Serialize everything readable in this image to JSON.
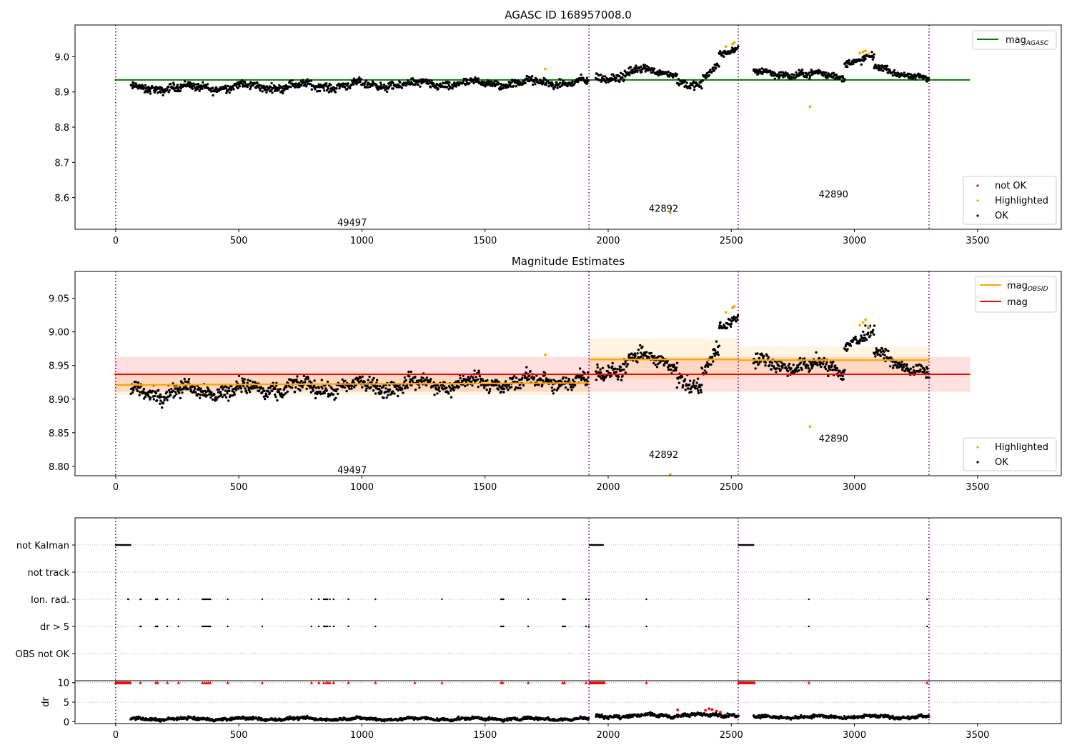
{
  "chart_data": [
    {
      "type": "scatter",
      "title": "AGASC ID 168957008.0",
      "xlim": [
        -165,
        3840
      ],
      "ylim": [
        8.51,
        9.09
      ],
      "x_ticks": [
        "0",
        "500",
        "1000",
        "1500",
        "2000",
        "2500",
        "3000",
        "3500"
      ],
      "y_ticks": [
        "8.6",
        "8.7",
        "8.8",
        "8.9",
        "9.0"
      ],
      "obs_boundaries": [
        0,
        1922,
        2528,
        3303
      ],
      "obs_labels": [
        {
          "text": "49497",
          "x": 960,
          "y": 8.53
        },
        {
          "text": "42892",
          "x": 2225,
          "y": 8.57
        },
        {
          "text": "42890",
          "x": 2915,
          "y": 8.61
        }
      ],
      "legend_lines": {
        "main": "mag",
        "subscript": "AGASC",
        "color": "#008000",
        "value": 8.934
      },
      "legend_markers": [
        {
          "label": "not OK",
          "color": "#ff0000"
        },
        {
          "label": "Highlighted",
          "color": "#ffa500"
        },
        {
          "label": "OK",
          "color": "#000000"
        }
      ],
      "legend_line_loc": "upper right",
      "legend_marker_loc": "lower right",
      "grid": false,
      "series": [
        {
          "name": "OK",
          "color": "#000000",
          "segments": [
            {
              "x": [
                62,
                1920
              ],
              "y": [
                8.91,
                8.928
              ],
              "noise": 0.011,
              "n": 930
            },
            {
              "x": [
                1950,
                2150
              ],
              "y": [
                8.935,
                8.965
              ],
              "noise": 0.012,
              "n": 100
            },
            {
              "x": [
                2150,
                2280
              ],
              "y": [
                8.958,
                8.955
              ],
              "noise": 0.009,
              "n": 65
            },
            {
              "x": [
                2280,
                2380
              ],
              "y": [
                8.935,
                8.905
              ],
              "noise": 0.012,
              "n": 50
            },
            {
              "x": [
                2380,
                2450
              ],
              "y": [
                8.93,
                8.975
              ],
              "noise": 0.012,
              "n": 35
            },
            {
              "x": [
                2450,
                2528
              ],
              "y": [
                9.01,
                9.025
              ],
              "noise": 0.008,
              "n": 40
            },
            {
              "x": [
                2590,
                2960
              ],
              "y": [
                8.955,
                8.945
              ],
              "noise": 0.01,
              "n": 185
            },
            {
              "x": [
                2960,
                3080
              ],
              "y": [
                8.985,
                8.995
              ],
              "noise": 0.01,
              "n": 60
            },
            {
              "x": [
                3080,
                3303
              ],
              "y": [
                8.97,
                8.935
              ],
              "noise": 0.008,
              "n": 110
            }
          ]
        },
        {
          "name": "Highlighted",
          "color": "#ffa500",
          "points": [
            [
              1745,
              8.965
            ],
            [
              2252,
              8.557
            ],
            [
              2478,
              9.029
            ],
            [
              2505,
              9.036
            ],
            [
              2512,
              9.04
            ],
            [
              2820,
              8.858
            ],
            [
              3022,
              9.01
            ],
            [
              3035,
              9.014
            ],
            [
              3045,
              9.016
            ],
            [
              3058,
              9.008
            ]
          ]
        }
      ]
    },
    {
      "type": "scatter",
      "title": "Magnitude Estimates",
      "xlim": [
        -165,
        3840
      ],
      "ylim": [
        8.786,
        9.09
      ],
      "x_ticks": [
        "0",
        "500",
        "1000",
        "1500",
        "2000",
        "2500",
        "3000",
        "3500"
      ],
      "y_ticks": [
        "8.80",
        "8.85",
        "8.90",
        "8.95",
        "9.00",
        "9.05"
      ],
      "obs_boundaries": [
        0,
        1922,
        2528,
        3303
      ],
      "obs_labels": [
        {
          "text": "49497",
          "x": 960,
          "y": 8.795
        },
        {
          "text": "42892",
          "x": 2225,
          "y": 8.818
        },
        {
          "text": "42890",
          "x": 2915,
          "y": 8.842
        }
      ],
      "legend_lines": [
        {
          "main": "mag",
          "subscript": "OBSID",
          "color": "#ffa500"
        },
        {
          "main": "mag",
          "subscript": "",
          "color": "#ff0000"
        }
      ],
      "legend_markers": [
        {
          "label": "Highlighted",
          "color": "#ffa500"
        },
        {
          "label": "OK",
          "color": "#000000"
        }
      ],
      "legend_line_loc": "upper right",
      "legend_marker_loc": "lower right",
      "mag_line": {
        "value": 8.937,
        "band": [
          8.911,
          8.963
        ],
        "x": [
          -5,
          3470
        ]
      },
      "obsid_mags": [
        {
          "x": [
            0,
            1922
          ],
          "y": [
            8.921,
            8.924
          ],
          "band": [
            8.906,
            8.936
          ]
        },
        {
          "x": [
            1922,
            2528
          ],
          "y": [
            8.959,
            8.959
          ],
          "band": [
            8.928,
            8.99
          ]
        },
        {
          "x": [
            2528,
            3303
          ],
          "y": [
            8.958,
            8.958
          ],
          "band": [
            8.937,
            8.978
          ]
        }
      ],
      "series": [
        {
          "name": "OK",
          "color": "#000000",
          "segments": [
            {
              "x": [
                62,
                1920
              ],
              "y": [
                8.91,
                8.928
              ],
              "noise": 0.011,
              "n": 930
            },
            {
              "x": [
                1950,
                2150
              ],
              "y": [
                8.935,
                8.965
              ],
              "noise": 0.012,
              "n": 100
            },
            {
              "x": [
                2150,
                2280
              ],
              "y": [
                8.958,
                8.955
              ],
              "noise": 0.009,
              "n": 65
            },
            {
              "x": [
                2280,
                2380
              ],
              "y": [
                8.935,
                8.905
              ],
              "noise": 0.012,
              "n": 50
            },
            {
              "x": [
                2380,
                2450
              ],
              "y": [
                8.93,
                8.975
              ],
              "noise": 0.012,
              "n": 35
            },
            {
              "x": [
                2450,
                2528
              ],
              "y": [
                9.01,
                9.025
              ],
              "noise": 0.008,
              "n": 40
            },
            {
              "x": [
                2590,
                2960
              ],
              "y": [
                8.955,
                8.945
              ],
              "noise": 0.01,
              "n": 185
            },
            {
              "x": [
                2960,
                3080
              ],
              "y": [
                8.985,
                8.995
              ],
              "noise": 0.01,
              "n": 60
            },
            {
              "x": [
                3080,
                3303
              ],
              "y": [
                8.97,
                8.935
              ],
              "noise": 0.008,
              "n": 110
            }
          ]
        },
        {
          "name": "Highlighted",
          "color": "#ffa500",
          "points": [
            [
              1745,
              8.966
            ],
            [
              2252,
              8.788
            ],
            [
              2478,
              9.029
            ],
            [
              2505,
              9.036
            ],
            [
              2512,
              9.038
            ],
            [
              2820,
              8.859
            ],
            [
              3022,
              9.01
            ],
            [
              3035,
              9.014
            ],
            [
              3045,
              9.018
            ],
            [
              3058,
              9.008
            ]
          ]
        }
      ]
    },
    {
      "type": "scatter",
      "title": "",
      "xlim": [
        -165,
        3840
      ],
      "flag_labels": [
        "not Kalman",
        "not track",
        "Ion. rad.",
        "dr > 5",
        "OBS not OK"
      ],
      "obs_boundaries": [
        0,
        1922,
        2528,
        3303
      ],
      "flags": {
        "not Kalman": {
          "ranges": [
            [
              0,
              60
            ],
            [
              1925,
              1980
            ],
            [
              2530,
              2590
            ]
          ],
          "points": []
        },
        "not track": {
          "ranges": [],
          "points": []
        },
        "Ion. rad.": {
          "ranges": [],
          "points": [
            50,
            52,
            100,
            103,
            163,
            166,
            170,
            210,
            255,
            352,
            356,
            360,
            365,
            370,
            375,
            380,
            385,
            455,
            595,
            795,
            825,
            845,
            850,
            855,
            860,
            870,
            885,
            945,
            1055,
            1325,
            1565,
            1570,
            1575,
            1675,
            1815,
            1820,
            1825,
            1910,
            1922,
            2155,
            2815,
            3295
          ]
        },
        "dr > 5": {
          "ranges": [],
          "points": [
            100,
            103,
            163,
            166,
            170,
            210,
            255,
            352,
            356,
            360,
            365,
            370,
            375,
            380,
            385,
            455,
            595,
            795,
            825,
            845,
            850,
            855,
            860,
            870,
            885,
            945,
            1055,
            1565,
            1570,
            1575,
            1675,
            1815,
            1820,
            1825,
            1910,
            1922,
            2155,
            2815,
            3295
          ]
        },
        "OBS not OK": {
          "ranges": [],
          "points": []
        }
      },
      "flag_color": "#000000"
    },
    {
      "type": "scatter",
      "title": "",
      "xlim": [
        -165,
        3840
      ],
      "ylim": [
        -0.5,
        10.5
      ],
      "ylabel": "dr",
      "x_ticks": [
        "0",
        "500",
        "1000",
        "1500",
        "2000",
        "2500",
        "3000",
        "3500"
      ],
      "y_ticks": [
        "0",
        "5",
        "10"
      ],
      "obs_boundaries": [
        0,
        1922,
        2528,
        3303
      ],
      "clip_markers": {
        "color": "#ff0000",
        "value": 10,
        "ranges": [
          [
            0,
            62
          ],
          [
            1925,
            1985
          ],
          [
            2530,
            2595
          ]
        ],
        "points": [
          100,
          163,
          170,
          210,
          255,
          352,
          360,
          368,
          376,
          384,
          455,
          595,
          795,
          825,
          845,
          855,
          862,
          870,
          885,
          945,
          1055,
          1215,
          1325,
          1565,
          1572,
          1675,
          1815,
          1822,
          1910,
          2155,
          2815,
          3295
        ]
      },
      "series": [
        {
          "name": "dr",
          "color": "#000000",
          "segments": [
            {
              "x": [
                62,
                1920
              ],
              "y": [
                0.7,
                0.7
              ],
              "noise": 0.35,
              "n": 900
            },
            {
              "x": [
                1950,
                2528
              ],
              "y": [
                1.4,
                1.8
              ],
              "noise": 0.45,
              "n": 260
            },
            {
              "x": [
                2590,
                3303
              ],
              "y": [
                1.2,
                1.2
              ],
              "noise": 0.4,
              "n": 320
            }
          ]
        },
        {
          "name": "dr not OK",
          "color": "#ff0000",
          "points": [
            [
              2282,
              3.0
            ],
            [
              2395,
              2.9
            ],
            [
              2410,
              3.3
            ],
            [
              2422,
              3.1
            ],
            [
              2440,
              2.7
            ],
            [
              2455,
              2.4
            ]
          ]
        }
      ]
    }
  ]
}
